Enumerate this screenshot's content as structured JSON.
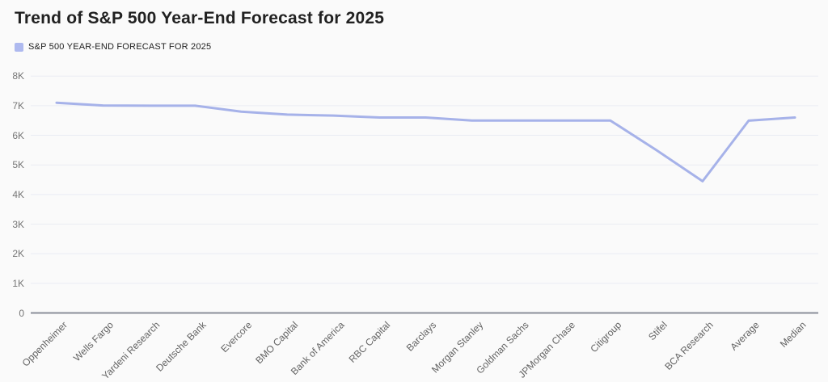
{
  "colors": {
    "background": "#fafafa",
    "line": "#a6b2e9",
    "legend_swatch": "#aeb9ef",
    "grid": "#eaecf3",
    "axis_line": "#8a8f99",
    "title_text": "#212121",
    "y_tick_text": "#757575",
    "x_tick_text": "#636363"
  },
  "chart_data": {
    "type": "line",
    "title": "Trend of S&P 500 Year-End Forecast for 2025",
    "legend": {
      "label": "S&P 500 YEAR-END FORECAST FOR 2025",
      "position": "top-left",
      "swatch_color": "#aeb9ef"
    },
    "categories": [
      "Oppenheimer",
      "Wells Fargo",
      "Yardeni Research",
      "Deutsche Bank",
      "Evercore",
      "BMO Capital",
      "Bank of America",
      "RBC Capital",
      "Barclays",
      "Morgan Stanley",
      "Goldman Sachs",
      "JPMorgan Chase",
      "Citigroup",
      "Stifel",
      "BCA Research",
      "Average",
      "Median"
    ],
    "series": [
      {
        "name": "S&P 500 YEAR-END FORECAST FOR 2025",
        "values": [
          7100,
          7007,
          7000,
          7000,
          6800,
          6700,
          6666,
          6600,
          6600,
          6500,
          6500,
          6500,
          6500,
          5500,
          4450,
          6495,
          6600
        ]
      }
    ],
    "xlabel": "",
    "ylabel": "",
    "ylim": [
      0,
      8000
    ],
    "ytick_step": 1000,
    "ytick_labels": [
      "0",
      "1K",
      "2K",
      "3K",
      "4K",
      "5K",
      "6K",
      "7K",
      "8K"
    ],
    "grid": true,
    "x_label_rotation_deg": -45
  }
}
